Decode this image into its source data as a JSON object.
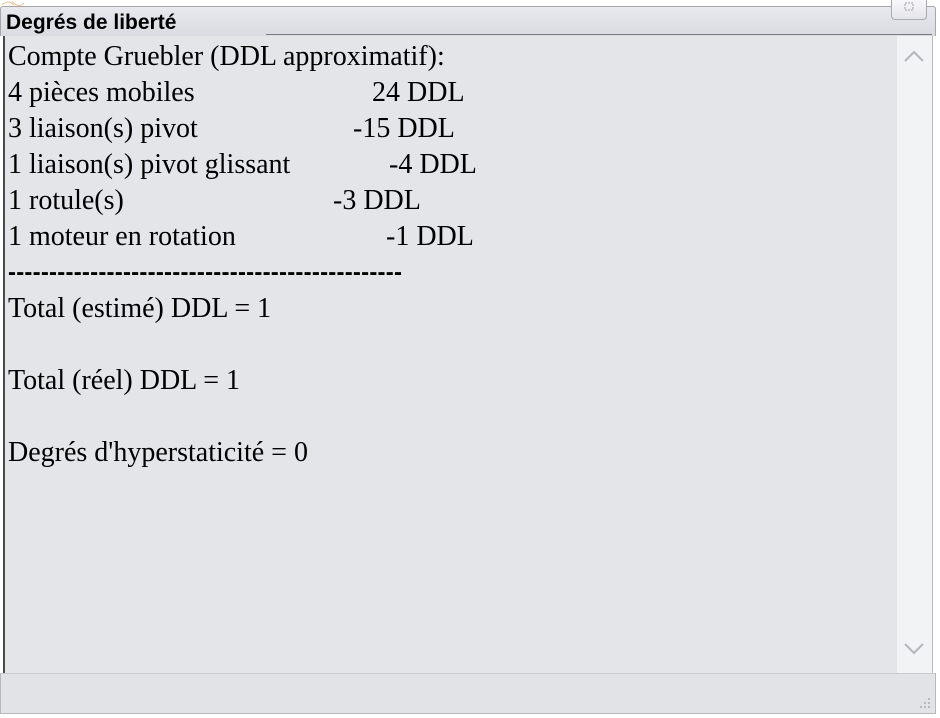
{
  "window": {
    "title": "Degrés de liberté"
  },
  "report": {
    "heading": "Compte Gruebler (DDL approximatif):",
    "rows": [
      {
        "label": "4 pièces mobiles",
        "value": "24 DDL"
      },
      {
        "label": "3 liaison(s) pivot",
        "value": "-15 DDL"
      },
      {
        "label": "1 liaison(s) pivot glissant",
        "value": "-4 DDL"
      },
      {
        "label": "1 rotule(s)",
        "value": "-3 DDL"
      },
      {
        "label": "1 moteur en rotation",
        "value": "-1 DDL"
      }
    ],
    "separator": "------------------------------------------------",
    "total_estimated": "Total (estimé) DDL = 1",
    "total_real": "Total (réel) DDL = 1",
    "hyperstaticity": "Degrés d'hyperstaticité = 0"
  },
  "icons": {
    "restore": "restore-icon",
    "scroll_up": "chevron-up-icon",
    "scroll_down": "chevron-down-icon",
    "resize_grip": "resize-grip-icon"
  },
  "colors": {
    "content_background": "#e4e5e8",
    "title_bar": "#dadbe1",
    "scrollbar_track": "#f2f3f5",
    "chevron": "#b3b6bc"
  }
}
